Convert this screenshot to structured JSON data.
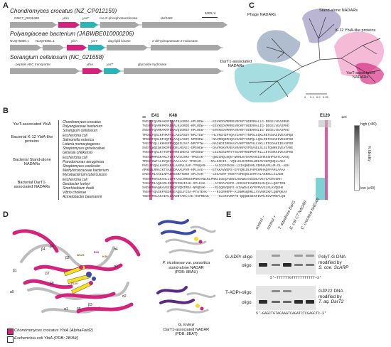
{
  "panels": {
    "A": "A",
    "B": "B",
    "C": "C",
    "D": "D",
    "E": "E"
  },
  "panelA": {
    "scale": "1000 nt",
    "genomes": [
      {
        "title": "Chondromyces crocatus (NZ_CP012159)",
        "genes": [
          "CMCT_RS06480",
          "ybiA",
          "yarT",
          "rna 2'-phosphotransferase",
          "duf4365"
        ]
      },
      {
        "title": "Polyangiaceae bacterium (JABWBE010000206)",
        "genes": [
          "NUQ75850.1",
          "NUQ75851.1",
          "ybiA",
          "yarT",
          "dag lipid kinase",
          "2-dehydropantoate 2-reductase"
        ]
      },
      {
        "title": "Sorangium cellulosum (NC_021658)",
        "genes": [
          "peptide ABC transporter",
          "ybiA",
          "yarT",
          "glycoside hydrolase"
        ]
      }
    ]
  },
  "panelC": {
    "clades": [
      "Phage NADARs",
      "Stand-alone NADARs",
      "K-12 YbiA-like proteins",
      "DarT1-associated NADARs",
      "YarT-associated NADARs"
    ],
    "scale_ticks": [
      "0",
      "0.1",
      "0.2",
      "0.25"
    ]
  },
  "panelB": {
    "positions": [
      "39",
      "E41",
      "K48",
      "E120",
      "126"
    ],
    "groups": [
      {
        "name": "YarT-associated YbiA",
        "species": [
          "Chondromyces crocatus",
          "Polyangiaceae bacterium",
          "Sorangium cellulosum"
        ]
      },
      {
        "name": "Bacterial K-12 YbiA-like proteins",
        "species": [
          "Escherichia coli",
          "Salmonella enterica",
          "Listeria monocytogenes",
          "Streptomyces griseiscabiei",
          "Gimesia chilikensis"
        ]
      },
      {
        "name": "Bacterial Stand-alone NADARs",
        "species": [
          "Escherichia coli",
          "Pseudomonas aeruginosa",
          "Streptomyces coelicolor",
          "Methylococcaceae bacterium",
          "Mycobacterium tuberculosis"
        ]
      },
      {
        "name": "Bacterial DarT1-associated NADARs",
        "species": [
          "Escherichia coli",
          "Geobacter lovleyi",
          "Sinorhizobium fredii",
          "Vibrio cholerae",
          "Acinetobacter baumannii"
        ]
      }
    ],
    "sequences": [
      "SVEYFFQAMKAKRFDAATKLGRDG-HPLRDW-----EEVKDOVMRRGVRCKFTHDERRALLG-DEGELVEASRHD",
      "TVEHFFQAMKPKRADRALKLGRDD-KPLRDW-----EEVKEDVMRRGVRCKFTHDERRALIG-DEGELVEASPHD",
      "SVEHFFQAMKAKRFDRAVQIGRDA-HPLREW-----ERVKEDVMRRAVRAKFTDDERRALIG-DEGELVEASPHD",
      "TPENLFQSLKFHKPALLAKLASDV-NPLTEW-----HLVKEHIMYQAVIAKFTTNPDLLQKLRETGNAEIVEASPQD",
      "TPENVFQSLKFHQPELAAQLASDV-NPRHEW-----NAVRDQIMHQAVIAKFTSNPQLLQKLRETGNAEIVEGSPSD",
      "TAEYMYQLLKHHSPEVQQEILSAY-NPYPTW-----NAIKDIIMEKAVYAKFTNNTHLLVKLLETGDAKIIEASPSD",
      "SVEYLWQIQKSKDPEVQRLAEAEI-DPEHEW-----DAVRGKVMAEAVRAKFKVPSVAELSLSLTQNRKIVEATARE",
      "TVEHWFQALKTTDPEFRRKIRDAS-SPSDEW-----LEIKDSIMRYTVEAKFRDDPKMTKLLLETGNKKIVEASPHD",
      "TVEHWMMAGKAKLFGKTAAVLSMA-TPKEAK-----QWLGRQLKQN-WHRLKYDVMVHGLDHKHSHPGHTLAAGQ",
      "TPEHYHWFALKYQGYHAAALAAV-TPSEAR-----RALGSKIS--YQNLKLDVRMSLWRLRYHHPQNQLLAEA",
      "PVELMYQALKAPGARALAARVLSAP-TPNQAR-----AAIGGPGKSH-LSIAQWDAMLVDMHAARLHP-DL-ADH",
      "APHEWLRRAIKTSAEDDAAALPVR-HPLAAG-----ETAKAVWSPS-EFFQRLDLFHPGHRHAQFPAMLAAAA",
      "SAEHLMLAAGLNPADPESRATWKR-SPLVAR-----LESAGRP-RGKFFSPEQHLGHMTALAKNRLLSLADR",
      "TVEHFMHAGKAHLLGPTAAGLRMEEHPNRAAWLKLPRKLLGEQAVENIANAWEAAGGDGAVEYSAGRVSRH",
      "TAEHYMLAQKARLRGEPEIEKIIAH-SPLEAK-----AYGRAVKGFD-AERAEFEAWREGLMLQLLLQKFTDN",
      "SAEHFMHAQKAVSGDKQFVQMIMDA-NPQDAK-----RLGQRVQNFS-KIAWDALKYRVMVVGLRLKVQEHK",
      "TVEHFYQASKFRSDRSEAQELFISA-PTATEAK-----RLGRRRPP-ALNWMAQRRLLVVVNRIKFLQNPQKAA",
      "TSEHYMHLAKAIRLLKADNYARLIAE-HSPREAK-----KLGRSVKPFN-QQQWESIKFDVMLKGVMMKFLQN"
    ],
    "identity": {
      "high": "high (>80)",
      "low": "low (≤40)",
      "axis": "% Identity"
    }
  },
  "panelD": {
    "sec_labels": [
      "β4",
      "β6",
      "β2",
      "β1",
      "α3",
      "α4",
      "α5",
      "β5",
      "β3",
      "α2",
      "α1",
      "β7",
      "β8"
    ],
    "residues": [
      "W129",
      "E41",
      "K48",
      "E120"
    ],
    "struct1": {
      "organism": "P. nicotianae var. parasitica",
      "desc": "stand-alone NADAR",
      "pdb": "(PDB: 8BAU)"
    },
    "struct2": {
      "organism": "G. lovleyi",
      "desc": "DarT1-associated NADAR",
      "pdb": "(PDB: 8BAT)"
    },
    "legend": [
      {
        "label": "Chondromyces crocatus YbiA (AlphaFold2)",
        "color": "#d4237d"
      },
      {
        "label": "Escherichia coli YbiA (PDB: 2B3W)",
        "color": "#ffffff"
      }
    ]
  },
  "panelE": {
    "lanes": [
      "control –",
      "control +",
      "T. aquaticus DarG",
      "E. coli C7 NADAR",
      "C. crocatus NADAR"
    ],
    "gel1": {
      "top": "G-ADPr-oligo",
      "bottom": "oligo",
      "right1": "PolyT-G DNA",
      "right2": "modified by",
      "right3": "S. coe. ScARP",
      "seq": "5'–TTTTTTGTTTTTTTTTTT–3'"
    },
    "gel2": {
      "top": "T-ADPr-oligo",
      "bottom": "oligo",
      "right1": "GJP22 DNA",
      "right2": "modified by",
      "right3": "T. aq. DarT2",
      "seq": "5'–GAGCTGTACAAGTCAGATCTCGAGCTC–3'"
    }
  }
}
